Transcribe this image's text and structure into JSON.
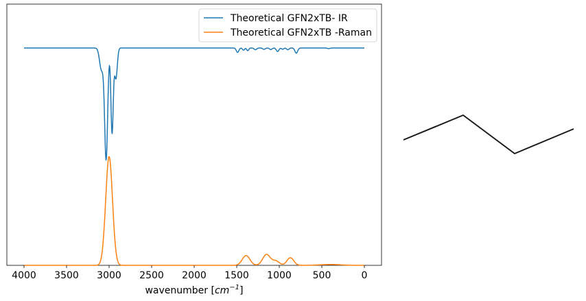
{
  "chart_data": {
    "type": "line",
    "xlabel_main": "wavenumber [",
    "xlabel_unit": "cm",
    "xlabel_exp": "−1",
    "xlabel_end": "]",
    "ylabel": "",
    "xlim": [
      4200,
      -200
    ],
    "x_ticks": [
      4000,
      3500,
      3000,
      2500,
      2000,
      1500,
      1000,
      500,
      0
    ],
    "x_tick_labels": [
      "4000",
      "3500",
      "3000",
      "2500",
      "2000",
      "1500",
      "1000",
      "500",
      "0"
    ],
    "y_ticks_shown": false,
    "grid": false,
    "legend_placement": "top-right",
    "series": [
      {
        "name": "Theoretical GFN2xTB- IR",
        "color": "#1f77b4",
        "baseline": 1.0,
        "peaks": [
          {
            "x": 3035,
            "depth": 0.51,
            "width": 18
          },
          {
            "x": 2965,
            "depth": 0.39,
            "width": 14
          },
          {
            "x": 3090,
            "depth": 0.1,
            "width": 22
          },
          {
            "x": 2920,
            "depth": 0.14,
            "width": 16
          },
          {
            "x": 1490,
            "depth": 0.02,
            "width": 15
          },
          {
            "x": 1420,
            "depth": 0.01,
            "width": 12
          },
          {
            "x": 1370,
            "depth": 0.012,
            "width": 12
          },
          {
            "x": 1280,
            "depth": 0.008,
            "width": 15
          },
          {
            "x": 1180,
            "depth": 0.006,
            "width": 15
          },
          {
            "x": 1100,
            "depth": 0.007,
            "width": 15
          },
          {
            "x": 1020,
            "depth": 0.016,
            "width": 15
          },
          {
            "x": 960,
            "depth": 0.006,
            "width": 12
          },
          {
            "x": 900,
            "depth": 0.008,
            "width": 14
          },
          {
            "x": 800,
            "depth": 0.024,
            "width": 16
          },
          {
            "x": 420,
            "depth": 0.003,
            "width": 15
          }
        ]
      },
      {
        "name": "Theoretical GFN2xTB -Raman",
        "color": "#ff7f0e",
        "baseline": 0.0,
        "peaks": [
          {
            "x": 3000,
            "height": 0.5,
            "width": 40
          },
          {
            "x": 1390,
            "height": 0.045,
            "width": 45
          },
          {
            "x": 1150,
            "height": 0.05,
            "width": 45
          },
          {
            "x": 1040,
            "height": 0.02,
            "width": 40
          },
          {
            "x": 870,
            "height": 0.035,
            "width": 40
          },
          {
            "x": 400,
            "height": 0.004,
            "width": 120
          }
        ]
      }
    ],
    "ylim": [
      0,
      1.05
    ]
  },
  "molecule": {
    "description_visible": false,
    "bond_color": "#1a1a1a"
  }
}
